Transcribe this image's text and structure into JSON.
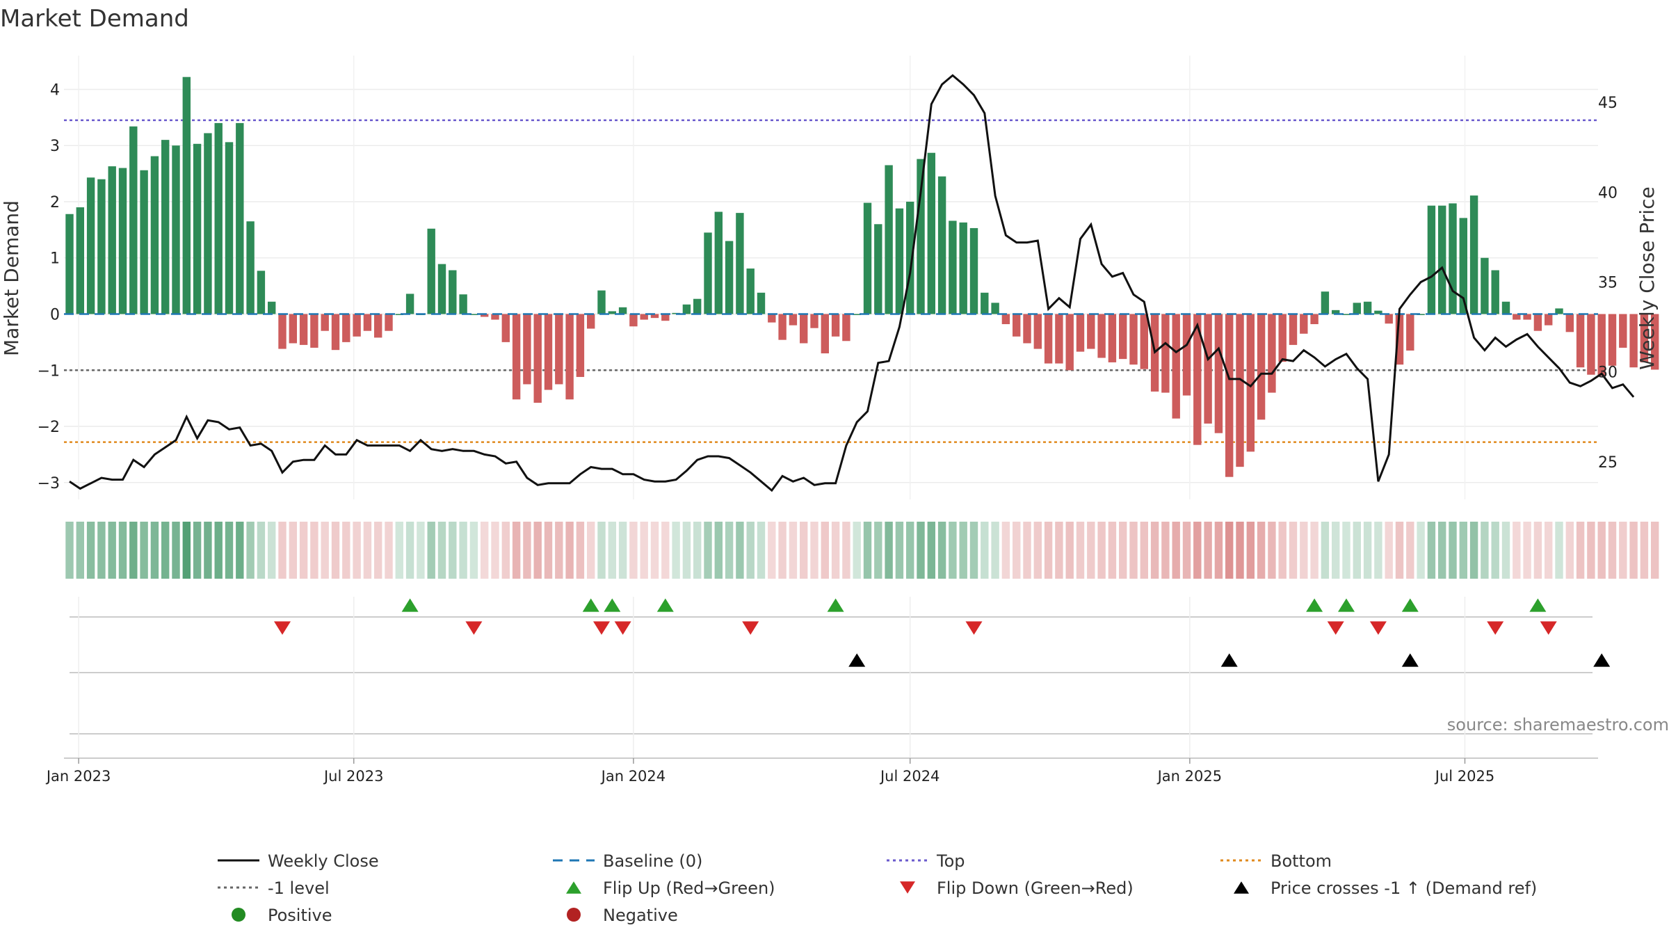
{
  "title": "Market Demand",
  "source": "source: sharemaestro.com",
  "colors": {
    "positive": "#2e8b57",
    "negative": "#cd5c5c",
    "close": "#111111",
    "baseline": "#1f77b4",
    "top": "#6a5acd",
    "bottom": "#e08a1e",
    "minus1": "#666666",
    "flip_up": "#2ca02c",
    "flip_down": "#d62728",
    "cross": "#000000",
    "positive_dot": "#228b22",
    "negative_dot": "#b22222"
  },
  "chart_data": {
    "type": "bar",
    "title": "Market Demand",
    "ylabel": "Market Demand",
    "y2label": "Weekly Close Price",
    "ylim": [
      -3.3,
      4.6
    ],
    "y2lim": [
      22.9,
      47.6
    ],
    "yticks": [
      -3,
      -2,
      -1,
      0,
      1,
      2,
      3,
      4
    ],
    "y2ticks": [
      25,
      30,
      35,
      40,
      45
    ],
    "x_start": "2022-12-26",
    "x_step_days": 7,
    "xticks": [
      {
        "label": "Jan 2023",
        "date": "2023-01-01"
      },
      {
        "label": "Jul 2023",
        "date": "2023-07-01"
      },
      {
        "label": "Jan 2024",
        "date": "2024-01-01"
      },
      {
        "label": "Jul 2024",
        "date": "2024-07-01"
      },
      {
        "label": "Jan 2025",
        "date": "2025-01-01"
      },
      {
        "label": "Jul 2025",
        "date": "2025-07-01"
      }
    ],
    "reference_lines": {
      "baseline": 0,
      "top": 3.45,
      "bottom": -2.28,
      "minus_one": -1
    },
    "demand": [
      1.78,
      1.9,
      2.43,
      2.4,
      2.63,
      2.6,
      3.34,
      2.56,
      2.81,
      3.1,
      3.0,
      4.22,
      3.03,
      3.22,
      3.4,
      3.06,
      3.4,
      1.65,
      0.77,
      0.22,
      -0.62,
      -0.52,
      -0.55,
      -0.6,
      -0.3,
      -0.64,
      -0.5,
      -0.4,
      -0.3,
      -0.42,
      -0.3,
      0.0,
      0.36,
      0.0,
      1.52,
      0.89,
      0.78,
      0.35,
      0.0,
      -0.05,
      -0.1,
      -0.5,
      -1.52,
      -1.25,
      -1.58,
      -1.35,
      -1.25,
      -1.52,
      -1.12,
      -0.26,
      0.42,
      0.05,
      0.12,
      -0.22,
      -0.1,
      -0.07,
      -0.12,
      0.02,
      0.17,
      0.27,
      1.45,
      1.82,
      1.3,
      1.8,
      0.81,
      0.38,
      -0.15,
      -0.46,
      -0.2,
      -0.52,
      -0.25,
      -0.7,
      -0.4,
      -0.48,
      0.0,
      1.98,
      1.6,
      2.65,
      1.88,
      2.0,
      2.76,
      2.87,
      2.45,
      1.66,
      1.63,
      1.53,
      0.38,
      0.2,
      -0.18,
      -0.4,
      -0.52,
      -0.62,
      -0.88,
      -0.88,
      -1.0,
      -0.67,
      -0.62,
      -0.78,
      -0.86,
      -0.8,
      -0.9,
      -0.98,
      -1.38,
      -1.4,
      -1.86,
      -1.45,
      -2.33,
      -1.95,
      -2.12,
      -2.9,
      -2.72,
      -2.45,
      -1.88,
      -1.4,
      -0.85,
      -0.55,
      -0.35,
      -0.18,
      0.4,
      0.07,
      0.0,
      0.2,
      0.22,
      0.06,
      -0.17,
      -0.9,
      -0.65,
      0.0,
      1.93,
      1.93,
      1.97,
      1.71,
      2.11,
      1.0,
      0.78,
      0.22,
      -0.1,
      -0.1,
      -0.3,
      -0.2,
      0.1,
      -0.32,
      -0.95,
      -1.08,
      -1.1,
      -0.92,
      -0.6,
      -0.95,
      -0.86,
      -0.99
    ],
    "close": [
      23.9,
      23.5,
      23.8,
      24.1,
      24.0,
      24.0,
      25.1,
      24.7,
      25.4,
      25.8,
      26.2,
      27.5,
      26.3,
      27.3,
      27.2,
      26.8,
      26.9,
      25.9,
      26.0,
      25.6,
      24.4,
      25.0,
      25.1,
      25.1,
      25.9,
      25.4,
      25.4,
      26.2,
      25.9,
      25.9,
      25.9,
      25.9,
      25.6,
      26.2,
      25.7,
      25.6,
      25.7,
      25.6,
      25.6,
      25.4,
      25.3,
      24.9,
      25.0,
      24.1,
      23.7,
      23.8,
      23.8,
      23.8,
      24.3,
      24.7,
      24.6,
      24.6,
      24.3,
      24.3,
      24.0,
      23.9,
      23.9,
      24.0,
      24.5,
      25.1,
      25.3,
      25.3,
      25.2,
      24.8,
      24.4,
      23.9,
      23.4,
      24.2,
      23.9,
      24.1,
      23.7,
      23.8,
      23.8,
      25.9,
      27.2,
      27.8,
      30.5,
      30.6,
      32.5,
      35.5,
      40.0,
      44.9,
      46.0,
      46.5,
      46.0,
      45.4,
      44.4,
      39.8,
      37.6,
      37.2,
      37.2,
      37.3,
      33.5,
      34.1,
      33.6,
      37.4,
      38.2,
      36.0,
      35.3,
      35.5,
      34.3,
      33.9,
      31.1,
      31.6,
      31.1,
      31.5,
      32.6,
      30.7,
      31.3,
      29.6,
      29.6,
      29.2,
      29.9,
      29.9,
      30.7,
      30.6,
      31.2,
      30.8,
      30.3,
      30.7,
      31.0,
      30.2,
      29.6,
      23.9,
      25.4,
      33.5,
      34.3,
      35.0,
      35.3,
      35.8,
      34.5,
      34.1,
      31.9,
      31.2,
      31.9,
      31.4,
      31.8,
      32.1,
      31.4,
      30.8,
      30.2,
      29.4,
      29.2,
      29.5,
      29.9,
      29.1,
      29.3,
      28.6
    ],
    "flip_up_idx": [
      32,
      49,
      51,
      56,
      72,
      117,
      120,
      126,
      138
    ],
    "flip_down_idx": [
      20,
      38,
      50,
      52,
      64,
      85,
      119,
      123,
      134,
      139
    ],
    "price_cross_idx": [
      74,
      109,
      126,
      144
    ],
    "legend": [
      {
        "label": "Weekly Close",
        "kind": "line-solid",
        "color_key": "close"
      },
      {
        "label": "Baseline (0)",
        "kind": "line-dash",
        "color_key": "baseline"
      },
      {
        "label": "Top",
        "kind": "line-dot",
        "color_key": "top"
      },
      {
        "label": "Bottom",
        "kind": "line-dot",
        "color_key": "bottom"
      },
      {
        "label": "-1 level",
        "kind": "line-dot",
        "color_key": "minus1"
      },
      {
        "label": "Flip Up (Red→Green)",
        "kind": "tri-up",
        "color_key": "flip_up"
      },
      {
        "label": "Flip Down (Green→Red)",
        "kind": "tri-down",
        "color_key": "flip_down"
      },
      {
        "label": "Price crosses -1 ↑ (Demand ref)",
        "kind": "tri-up",
        "color_key": "cross"
      },
      {
        "label": "Positive",
        "kind": "dot",
        "color_key": "positive_dot"
      },
      {
        "label": "Negative",
        "kind": "dot",
        "color_key": "negative_dot"
      }
    ]
  }
}
